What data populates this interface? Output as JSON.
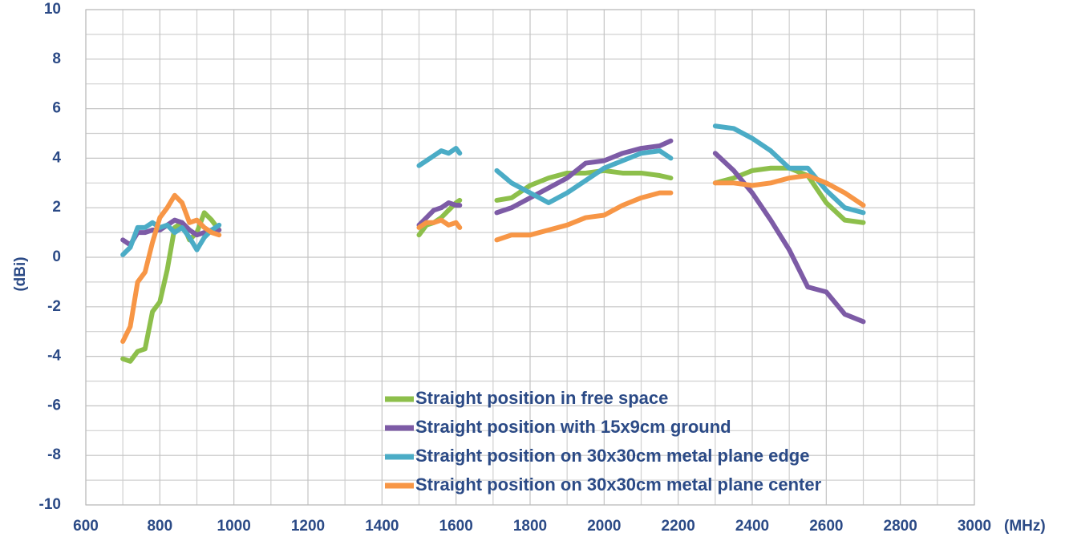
{
  "chart_data": {
    "type": "line",
    "ylabel": "(dBi)",
    "xlabel": "(MHz)",
    "x": [
      700,
      720,
      740,
      760,
      780,
      800,
      820,
      840,
      860,
      880,
      900,
      920,
      940,
      960,
      1230,
      1500,
      1520,
      1540,
      1560,
      1580,
      1600,
      1610,
      1665,
      1710,
      1750,
      1800,
      1850,
      1900,
      1950,
      2000,
      2050,
      2100,
      2150,
      2180,
      2240,
      2300,
      2350,
      2400,
      2450,
      2500,
      2550,
      2600,
      2650,
      2700
    ],
    "series": [
      {
        "name": "Straight position in free space",
        "color": "#8dbf4b",
        "values": [
          -4.1,
          -4.2,
          -3.8,
          -3.7,
          -2.2,
          -1.8,
          -0.5,
          1.2,
          1.4,
          0.7,
          1.0,
          1.8,
          1.5,
          1.1,
          null,
          0.9,
          1.3,
          1.4,
          1.6,
          1.9,
          2.2,
          2.3,
          null,
          2.3,
          2.4,
          2.9,
          3.2,
          3.4,
          3.4,
          3.5,
          3.4,
          3.4,
          3.3,
          3.2,
          null,
          3.0,
          3.2,
          3.5,
          3.6,
          3.6,
          3.3,
          2.2,
          1.5,
          1.4
        ]
      },
      {
        "name": "Straight position with 15x9cm ground",
        "color": "#7d5ba6",
        "values": [
          0.7,
          0.5,
          1.0,
          1.0,
          1.1,
          1.1,
          1.3,
          1.5,
          1.4,
          1.1,
          0.9,
          1.0,
          1.1,
          1.1,
          null,
          1.3,
          1.6,
          1.9,
          2.0,
          2.2,
          2.1,
          2.1,
          null,
          1.8,
          2.0,
          2.4,
          2.8,
          3.2,
          3.8,
          3.9,
          4.2,
          4.4,
          4.5,
          4.7,
          null,
          4.2,
          3.5,
          2.6,
          1.5,
          0.3,
          -1.2,
          -1.4,
          -2.3,
          -2.6
        ]
      },
      {
        "name": "Straight position on 30x30cm metal plane edge",
        "color": "#4bacc6",
        "values": [
          0.1,
          0.4,
          1.2,
          1.2,
          1.4,
          1.2,
          1.3,
          1.0,
          1.2,
          0.8,
          0.3,
          0.8,
          1.1,
          1.3,
          null,
          3.7,
          3.9,
          4.1,
          4.3,
          4.2,
          4.4,
          4.2,
          null,
          3.5,
          3.0,
          2.6,
          2.2,
          2.6,
          3.1,
          3.6,
          3.9,
          4.2,
          4.3,
          4.0,
          null,
          5.3,
          5.2,
          4.8,
          4.3,
          3.6,
          3.6,
          2.7,
          2.0,
          1.8
        ]
      },
      {
        "name": "Straight position on 30x30cm metal plane center",
        "color": "#f79646",
        "values": [
          -3.4,
          -2.8,
          -1.0,
          -0.6,
          0.6,
          1.6,
          2.0,
          2.5,
          2.2,
          1.4,
          1.5,
          1.2,
          1.0,
          0.9,
          null,
          1.2,
          1.4,
          1.4,
          1.5,
          1.3,
          1.4,
          1.2,
          null,
          0.7,
          0.9,
          0.9,
          1.1,
          1.3,
          1.6,
          1.7,
          2.1,
          2.4,
          2.6,
          2.6,
          null,
          3.0,
          3.0,
          2.9,
          3.0,
          3.2,
          3.3,
          3.0,
          2.6,
          2.1
        ]
      }
    ],
    "xlim": [
      600,
      3000
    ],
    "xticks": [
      600,
      800,
      1000,
      1200,
      1400,
      1600,
      1800,
      2000,
      2200,
      2400,
      2600,
      2800,
      3000
    ],
    "x_minor_ticks": [
      700,
      900,
      1100,
      1300,
      1500,
      1700,
      1900,
      2100,
      2300,
      2500,
      2700,
      2900
    ],
    "ylim": [
      -10,
      10
    ],
    "yticks": [
      -10,
      -8,
      -6,
      -4,
      -2,
      0,
      2,
      4,
      6,
      8,
      10
    ],
    "y_minor_ticks": [
      -9,
      -7,
      -5,
      -3,
      -1,
      1,
      3,
      5,
      7,
      9
    ],
    "grid": true,
    "legend": "lower-right"
  }
}
